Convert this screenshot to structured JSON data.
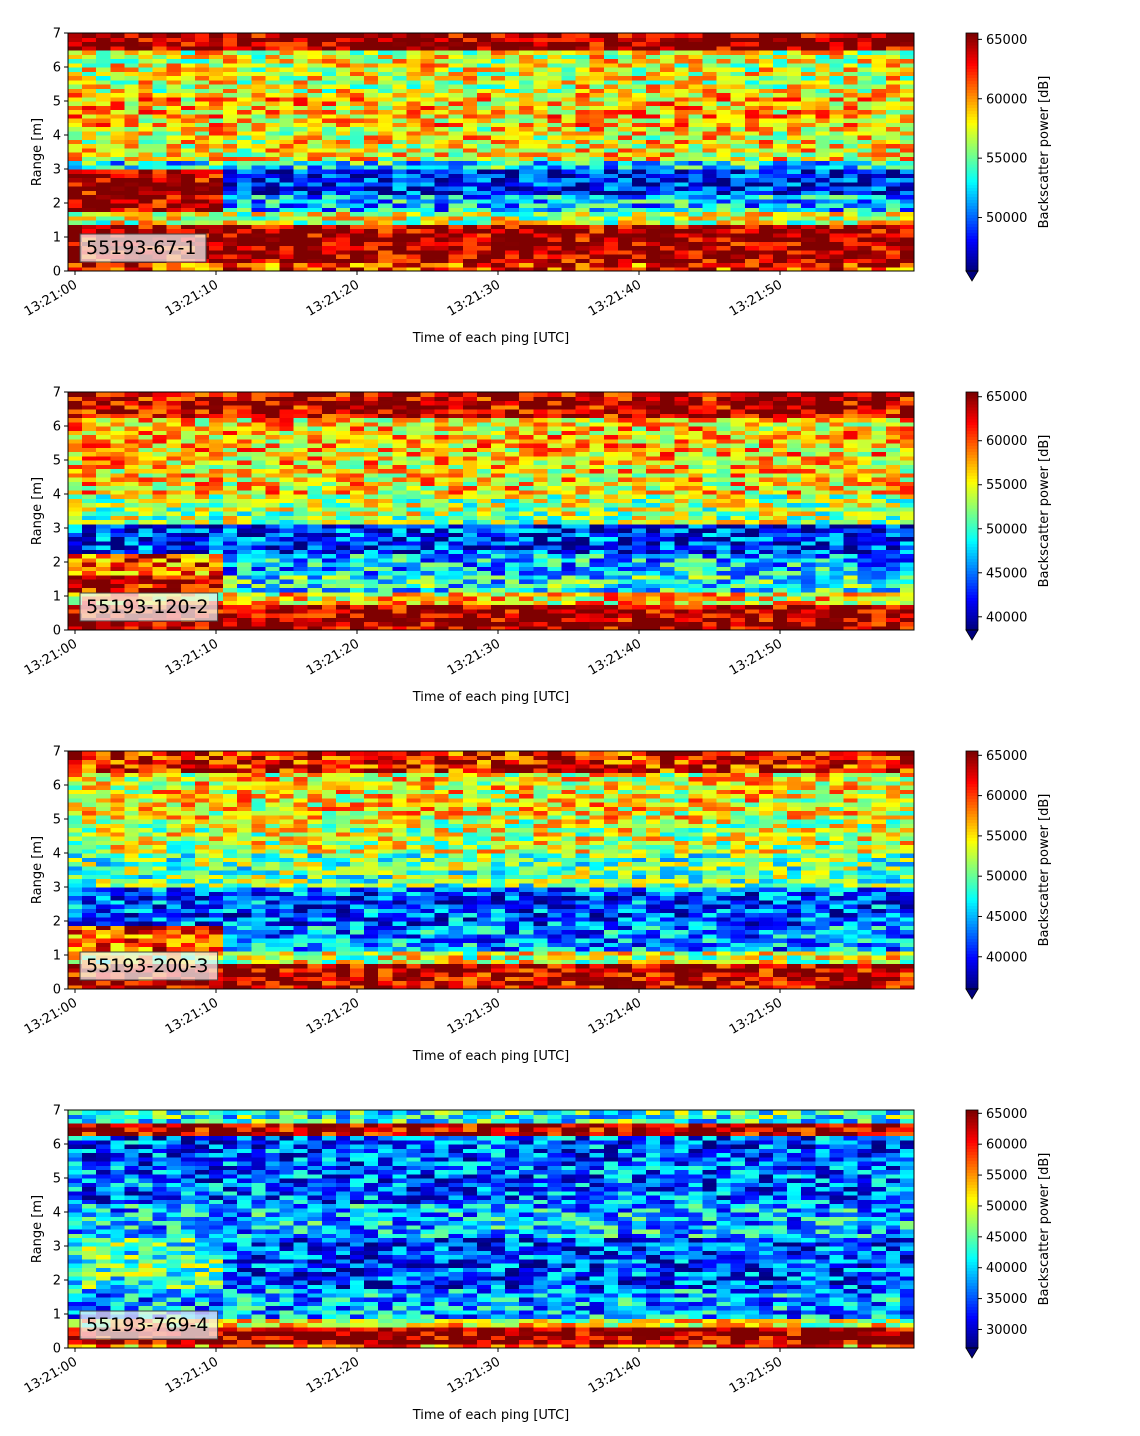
{
  "figure": {
    "colormap": "jet",
    "colormap_stops": [
      "#00007f",
      "#0000ff",
      "#007fff",
      "#00ffff",
      "#7fff7f",
      "#ffff00",
      "#ff7f00",
      "#ff0000",
      "#7f0000"
    ]
  },
  "chart_data": [
    {
      "type": "heatmap",
      "label": "55193-67-1",
      "xlabel": "Time of each ping [UTC]",
      "ylabel": "Range [m]",
      "xticks": [
        "13:21:00",
        "13:21:10",
        "13:21:20",
        "13:21:30",
        "13:21:40",
        "13:21:50"
      ],
      "xlim": [
        "13:20:59.5",
        "13:21:59.5"
      ],
      "yticks": [
        0,
        1,
        2,
        3,
        4,
        5,
        6,
        7
      ],
      "ylim": [
        0,
        7
      ],
      "colorbar": {
        "label": "Backscatter power [dB]",
        "ticks": [
          50000,
          55000,
          60000,
          65000
        ],
        "range": [
          45500,
          65535
        ],
        "extend": "min"
      },
      "range_profile": [
        {
          "range_m": [
            0.0,
            0.25
          ],
          "value": 62000
        },
        {
          "range_m": [
            0.25,
            1.4
          ],
          "value": 65000
        },
        {
          "range_m": [
            1.4,
            1.7
          ],
          "value": 57000
        },
        {
          "range_m": [
            1.7,
            2.3
          ],
          "value": 52000,
          "early_value": 65000
        },
        {
          "range_m": [
            2.3,
            3.0
          ],
          "value": 48000,
          "early_value": 65000
        },
        {
          "range_m": [
            3.0,
            3.3
          ],
          "value": 53000
        },
        {
          "range_m": [
            3.3,
            4.2
          ],
          "value": 58000
        },
        {
          "range_m": [
            4.2,
            5.2
          ],
          "value": 59000
        },
        {
          "range_m": [
            5.2,
            6.5
          ],
          "value": 57500
        },
        {
          "range_m": [
            6.5,
            7.0
          ],
          "value": 65500
        }
      ]
    },
    {
      "type": "heatmap",
      "label": "55193-120-2",
      "xlabel": "Time of each ping [UTC]",
      "ylabel": "Range [m]",
      "xticks": [
        "13:21:00",
        "13:21:10",
        "13:21:20",
        "13:21:30",
        "13:21:40",
        "13:21:50"
      ],
      "xlim": [
        "13:20:59.5",
        "13:21:59.5"
      ],
      "yticks": [
        0,
        1,
        2,
        3,
        4,
        5,
        6,
        7
      ],
      "ylim": [
        0,
        7
      ],
      "colorbar": {
        "label": "Backscatter power [dB]",
        "ticks": [
          40000,
          45000,
          50000,
          55000,
          60000,
          65000
        ],
        "range": [
          38500,
          65535
        ],
        "extend": "min"
      },
      "range_profile": [
        {
          "range_m": [
            0.0,
            0.8
          ],
          "value": 65000
        },
        {
          "range_m": [
            0.8,
            1.1
          ],
          "value": 56000
        },
        {
          "range_m": [
            1.1,
            1.6
          ],
          "value": 49000,
          "early_value": 63000
        },
        {
          "range_m": [
            1.6,
            2.3
          ],
          "value": 47000,
          "early_value": 60000
        },
        {
          "range_m": [
            2.3,
            3.1
          ],
          "value": 43000
        },
        {
          "range_m": [
            3.1,
            4.0
          ],
          "value": 53000
        },
        {
          "range_m": [
            4.0,
            5.0
          ],
          "value": 56000
        },
        {
          "range_m": [
            5.0,
            6.3
          ],
          "value": 56500
        },
        {
          "range_m": [
            6.3,
            7.0
          ],
          "value": 64000
        }
      ]
    },
    {
      "type": "heatmap",
      "label": "55193-200-3",
      "xlabel": "Time of each ping [UTC]",
      "ylabel": "Range [m]",
      "xticks": [
        "13:21:00",
        "13:21:10",
        "13:21:20",
        "13:21:30",
        "13:21:40",
        "13:21:50"
      ],
      "xlim": [
        "13:20:59.5",
        "13:21:59.5"
      ],
      "yticks": [
        0,
        1,
        2,
        3,
        4,
        5,
        6,
        7
      ],
      "ylim": [
        0,
        7
      ],
      "colorbar": {
        "label": "Backscatter power [dB]",
        "ticks": [
          40000,
          45000,
          50000,
          55000,
          60000,
          65000
        ],
        "range": [
          36000,
          65535
        ],
        "extend": "min"
      },
      "range_profile": [
        {
          "range_m": [
            0.0,
            0.8
          ],
          "value": 64000
        },
        {
          "range_m": [
            0.8,
            1.1
          ],
          "value": 53000
        },
        {
          "range_m": [
            1.1,
            1.9
          ],
          "value": 44000,
          "early_value": 60000
        },
        {
          "range_m": [
            1.9,
            3.0
          ],
          "value": 42000
        },
        {
          "range_m": [
            3.0,
            4.0
          ],
          "value": 50000
        },
        {
          "range_m": [
            4.0,
            5.0
          ],
          "value": 53000
        },
        {
          "range_m": [
            5.0,
            6.4
          ],
          "value": 54500
        },
        {
          "range_m": [
            6.4,
            7.0
          ],
          "value": 62000
        }
      ]
    },
    {
      "type": "heatmap",
      "label": "55193-769-4",
      "xlabel": "Time of each ping [UTC]",
      "ylabel": "Range [m]",
      "xticks": [
        "13:21:00",
        "13:21:10",
        "13:21:20",
        "13:21:30",
        "13:21:40",
        "13:21:50"
      ],
      "xlim": [
        "13:20:59.5",
        "13:21:59.5"
      ],
      "yticks": [
        0,
        1,
        2,
        3,
        4,
        5,
        6,
        7
      ],
      "ylim": [
        0,
        7
      ],
      "colorbar": {
        "label": "Backscatter power [dB]",
        "ticks": [
          30000,
          35000,
          40000,
          45000,
          50000,
          55000,
          60000,
          65000
        ],
        "range": [
          27000,
          65535
        ],
        "extend": "min"
      },
      "range_profile": [
        {
          "range_m": [
            0.0,
            0.15
          ],
          "value": 56000
        },
        {
          "range_m": [
            0.15,
            0.65
          ],
          "value": 65000
        },
        {
          "range_m": [
            0.65,
            0.9
          ],
          "value": 50000
        },
        {
          "range_m": [
            0.9,
            1.8
          ],
          "value": 38000
        },
        {
          "range_m": [
            1.8,
            3.2
          ],
          "value": 34000,
          "early_value": 44000
        },
        {
          "range_m": [
            3.2,
            4.3
          ],
          "value": 39000
        },
        {
          "range_m": [
            4.3,
            5.2
          ],
          "value": 35500
        },
        {
          "range_m": [
            5.2,
            6.3
          ],
          "value": 35000
        },
        {
          "range_m": [
            6.3,
            6.6
          ],
          "value": 64000
        },
        {
          "range_m": [
            6.6,
            7.0
          ],
          "value": 43000
        }
      ]
    }
  ]
}
